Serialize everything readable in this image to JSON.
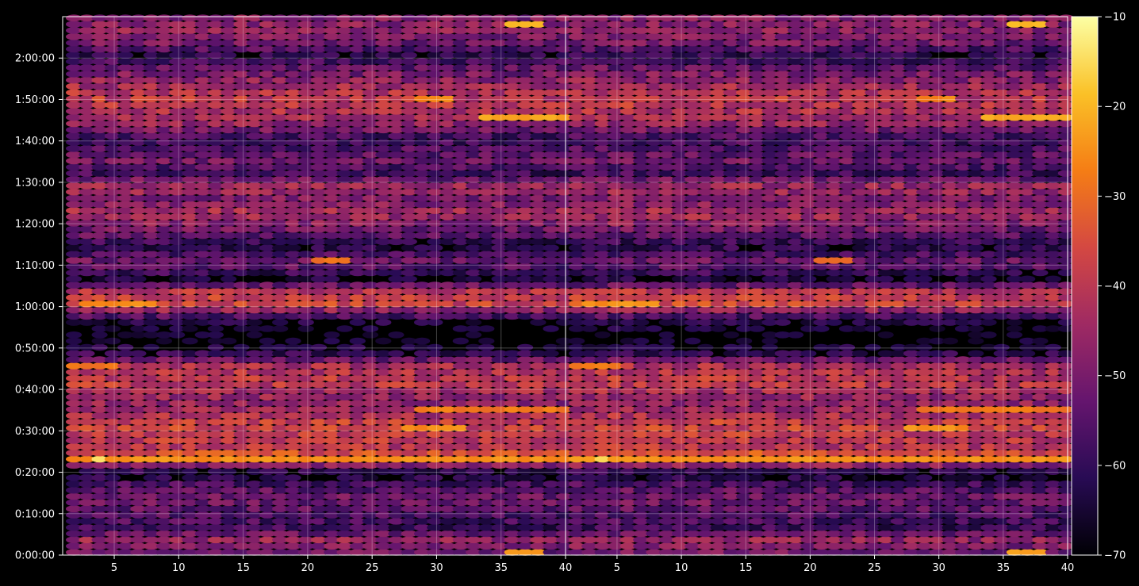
{
  "chart_data": {
    "type": "heatmap",
    "title": "",
    "xlabel": "",
    "ylabel": "",
    "panels": [
      {
        "name": "",
        "x_range": [
          1,
          40
        ]
      },
      {
        "name": "",
        "x_range": [
          1,
          40
        ]
      }
    ],
    "x_ticks": [
      5,
      10,
      15,
      20,
      25,
      30,
      35,
      40
    ],
    "x_tick_labels": [
      "5",
      "10",
      "15",
      "20",
      "25",
      "30",
      "35",
      "40"
    ],
    "y_range_seconds": [
      0,
      7800
    ],
    "y_ticks": [
      "0:00:00",
      "0:10:00",
      "0:20:00",
      "0:30:00",
      "0:40:00",
      "0:50:00",
      "1:00:00",
      "1:10:00",
      "1:20:00",
      "1:30:00",
      "1:40:00",
      "1:50:00",
      "2:00:00"
    ],
    "grid": true,
    "colormap": "inferno",
    "colorbar": {
      "min": -70,
      "max": -10,
      "ticks": [
        -70,
        -60,
        -50,
        -40,
        -30,
        -20,
        -10
      ],
      "tick_labels": [
        "−70",
        "−60",
        "−50",
        "−40",
        "−30",
        "−20",
        "−10"
      ]
    },
    "x_columns": 39,
    "row_step_seconds": 90,
    "row_profile": [
      {
        "t": "0:00:00",
        "level": -50
      },
      {
        "t": "0:03:00",
        "level": -45
      },
      {
        "t": "0:06:00",
        "level": -58
      },
      {
        "t": "0:09:00",
        "level": -55
      },
      {
        "t": "0:13:00",
        "level": -50
      },
      {
        "t": "0:16:00",
        "level": -55
      },
      {
        "t": "0:19:00",
        "level": -65
      },
      {
        "t": "0:23:00",
        "level": -28
      },
      {
        "t": "0:25:00",
        "level": -40
      },
      {
        "t": "0:28:00",
        "level": -38
      },
      {
        "t": "0:31:00",
        "level": -36
      },
      {
        "t": "0:34:00",
        "level": -44
      },
      {
        "t": "0:37:00",
        "level": -46
      },
      {
        "t": "0:41:00",
        "level": -38
      },
      {
        "t": "0:45:00",
        "level": -42
      },
      {
        "t": "0:48:00",
        "level": -60
      },
      {
        "t": "0:52:00",
        "level": -68
      },
      {
        "t": "0:56:00",
        "level": -62
      },
      {
        "t": "1:00:00",
        "level": -36
      },
      {
        "t": "1:03:00",
        "level": -40
      },
      {
        "t": "1:06:00",
        "level": -64
      },
      {
        "t": "1:10:00",
        "level": -50
      },
      {
        "t": "1:14:00",
        "level": -62
      },
      {
        "t": "1:17:00",
        "level": -52
      },
      {
        "t": "1:22:00",
        "level": -42
      },
      {
        "t": "1:25:00",
        "level": -50
      },
      {
        "t": "1:28:00",
        "level": -42
      },
      {
        "t": "1:32:00",
        "level": -60
      },
      {
        "t": "1:34:00",
        "level": -50
      },
      {
        "t": "1:37:00",
        "level": -54
      },
      {
        "t": "1:40:00",
        "level": -58
      },
      {
        "t": "1:43:00",
        "level": -46
      },
      {
        "t": "1:46:00",
        "level": -42
      },
      {
        "t": "1:49:00",
        "level": -38
      },
      {
        "t": "1:52:00",
        "level": -42
      },
      {
        "t": "1:56:00",
        "level": -50
      },
      {
        "t": "2:00:00",
        "level": -60
      },
      {
        "t": "2:03:00",
        "level": -50
      },
      {
        "t": "2:06:00",
        "level": -46
      },
      {
        "t": "2:10:00",
        "level": -48
      }
    ],
    "hotspots": [
      {
        "t": "0:23:00",
        "x_from": 1,
        "x_to": 40,
        "level": -25
      },
      {
        "t": "0:23:00",
        "x_from": 3,
        "x_to": 4,
        "level": -14
      },
      {
        "t": "0:30:00",
        "x_from": 27,
        "x_to": 32,
        "level": -25
      },
      {
        "t": "0:34:00",
        "x_from": 28,
        "x_to": 40,
        "level": -28
      },
      {
        "t": "0:45:00",
        "x_from": 1,
        "x_to": 5,
        "level": -28
      },
      {
        "t": "1:00:00",
        "x_from": 2,
        "x_to": 8,
        "level": -25
      },
      {
        "t": "1:10:00",
        "x_from": 20,
        "x_to": 23,
        "level": -30
      },
      {
        "t": "1:45:00",
        "x_from": 33,
        "x_to": 40,
        "level": -22
      },
      {
        "t": "1:49:00",
        "x_from": 28,
        "x_to": 31,
        "level": -26
      },
      {
        "t": "2:08:00",
        "x_from": 35,
        "x_to": 38,
        "level": -20
      },
      {
        "t": "0:00:00",
        "x_from": 35,
        "x_to": 38,
        "level": -24
      }
    ]
  }
}
